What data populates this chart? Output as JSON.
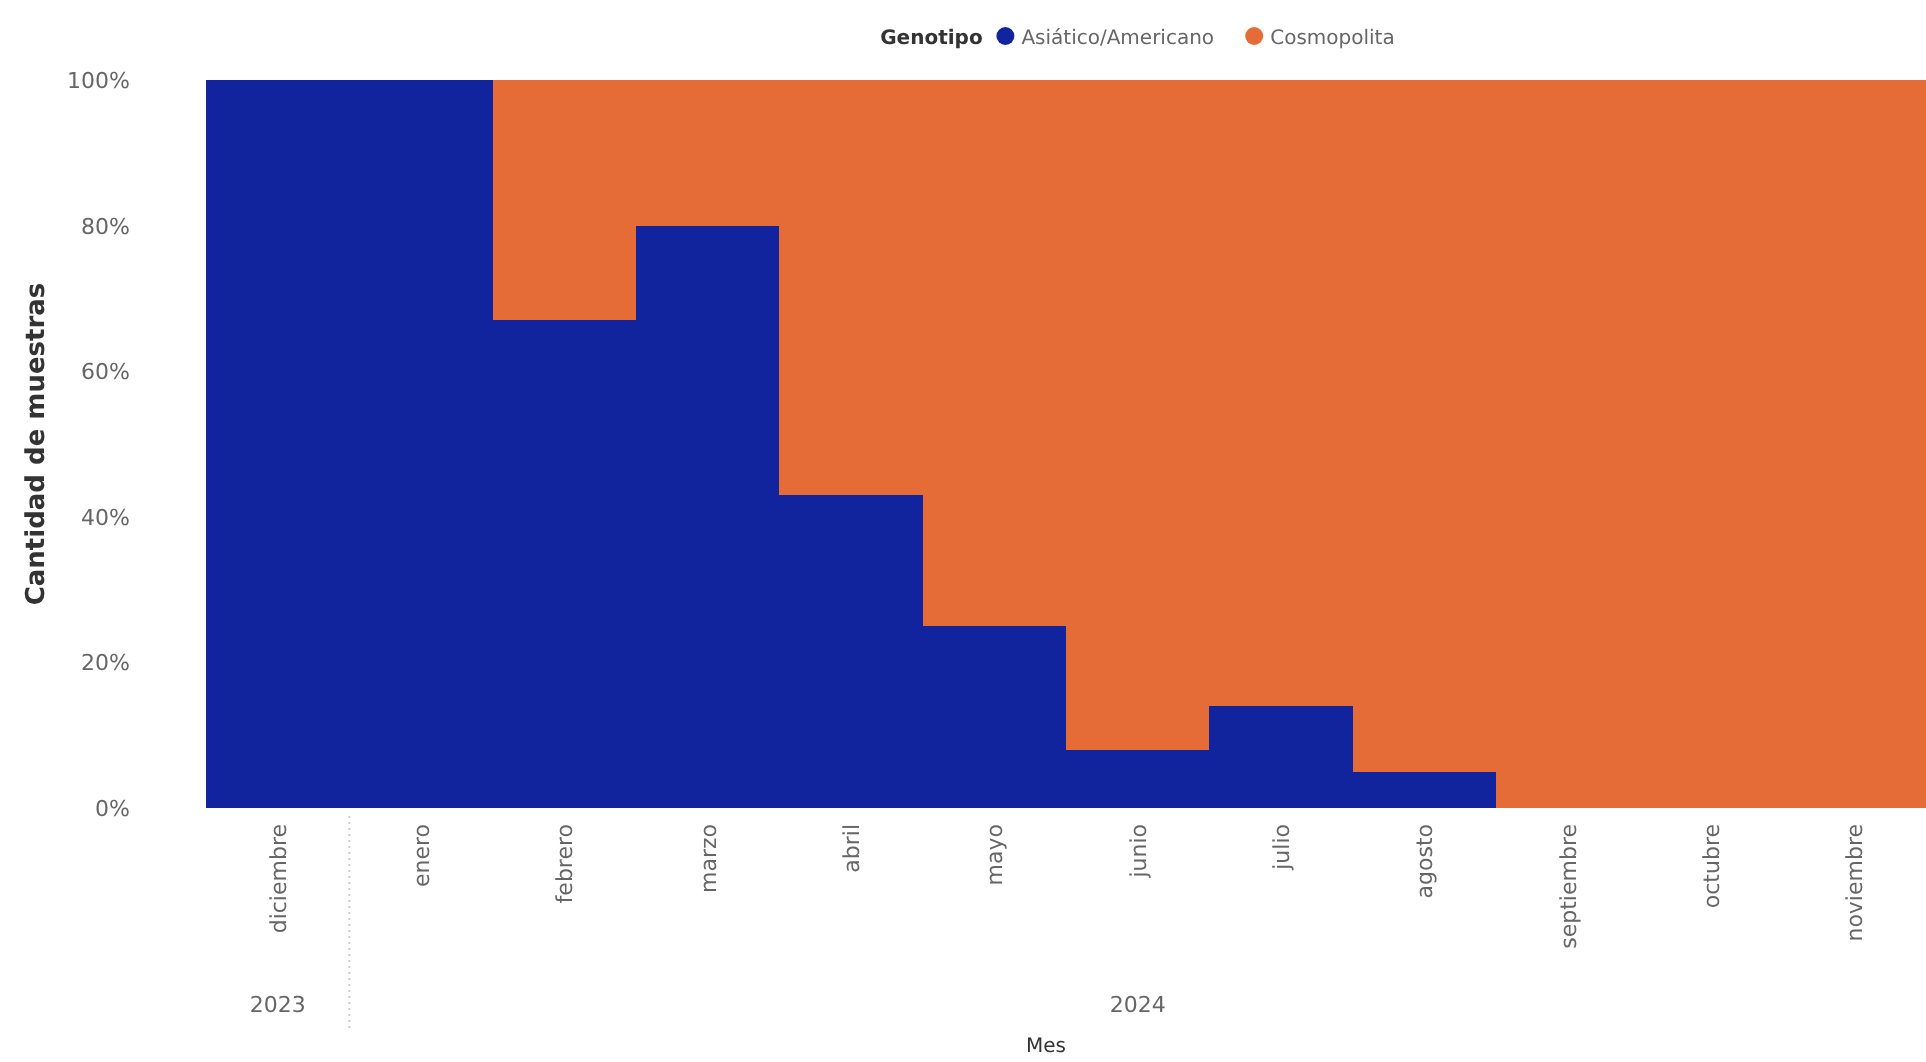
{
  "chart_data": {
    "type": "bar",
    "stacked": true,
    "legend_title": "Genotipo",
    "legend": "top",
    "xlabel": "Mes",
    "ylabel": "Cantidad de muestras",
    "categories": [
      "diciembre",
      "enero",
      "febrero",
      "marzo",
      "abril",
      "mayo",
      "junio",
      "julio",
      "agosto",
      "septiembre",
      "octubre",
      "noviembre"
    ],
    "series": [
      {
        "name": "Asiático/Americano",
        "color": "#12239e",
        "values": [
          100,
          100,
          67,
          80,
          43,
          25,
          8,
          14,
          5,
          0,
          0,
          0
        ]
      },
      {
        "name": "Cosmopolita",
        "color": "#e66c37",
        "values": [
          0,
          0,
          33,
          20,
          57,
          75,
          92,
          86,
          95,
          100,
          100,
          100
        ]
      }
    ],
    "ylim": [
      0,
      100
    ],
    "yticks": [
      {
        "value": 0,
        "label": "0%"
      },
      {
        "value": 20,
        "label": "20%"
      },
      {
        "value": 40,
        "label": "40%"
      },
      {
        "value": 60,
        "label": "60%"
      },
      {
        "value": 80,
        "label": "80%"
      },
      {
        "value": 100,
        "label": "100%"
      }
    ],
    "annotations": [
      "2023",
      "2024"
    ]
  }
}
